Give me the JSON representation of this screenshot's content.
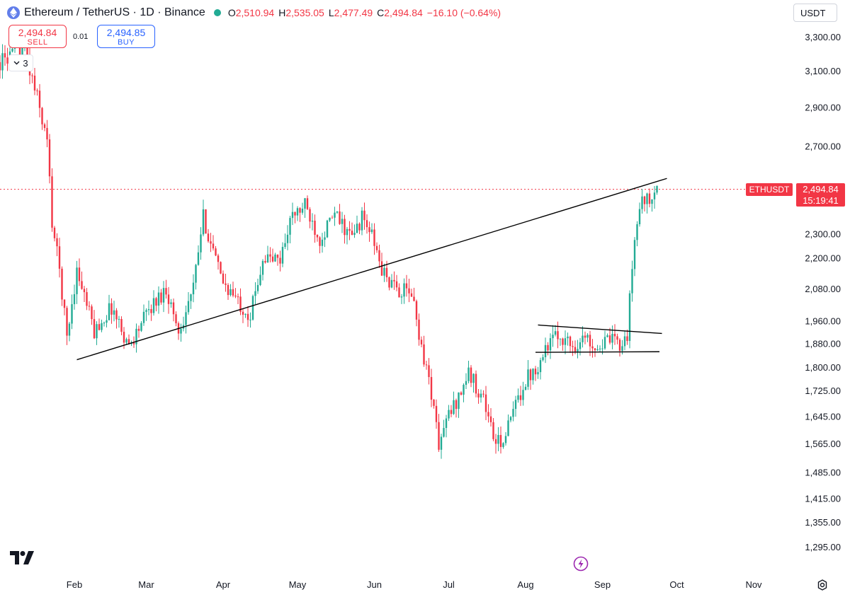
{
  "header": {
    "symbol": "Ethereum / TetherUS · 1D · Binance",
    "ohlc": [
      {
        "k": "O",
        "v": "2,510.94"
      },
      {
        "k": "H",
        "v": "2,535.05"
      },
      {
        "k": "L",
        "v": "2,477.49"
      },
      {
        "k": "C",
        "v": "2,494.84"
      },
      {
        "k": "",
        "v": "−16.10 (−0.64%)"
      }
    ]
  },
  "trade": {
    "sell_price": "2,494.84",
    "sell_label": "SELL",
    "buy_price": "2,494.85",
    "buy_label": "BUY",
    "spread": "0.01"
  },
  "indicators_count": "3",
  "currency": "USDT",
  "price_tag": {
    "symbol": "ETHUSDT",
    "price": "2,494.84",
    "countdown": "15:19:41"
  },
  "colors": {
    "up": "#22ab94",
    "down": "#f23645",
    "trendline": "#000000",
    "price_line": "#f23645"
  },
  "chart_data": {
    "type": "candlestick",
    "y_axis_labels": [
      "3,300.00",
      "3,100.00",
      "2,900.00",
      "2,700.00",
      "2,300.00",
      "2,200.00",
      "2,080.00",
      "1,960.00",
      "1,880.00",
      "1,800.00",
      "1,725.00",
      "1,645.00",
      "1,565.00",
      "1,485.00",
      "1,415.00",
      "1,355.00",
      "1,295.00"
    ],
    "y_axis_values": [
      3300,
      3100,
      2900,
      2700,
      2300,
      2200,
      2080,
      1960,
      1880,
      1800,
      1725,
      1645,
      1565,
      1485,
      1415,
      1355,
      1295
    ],
    "y_scale": "log",
    "x_axis_labels": [
      "Feb",
      "Mar",
      "Apr",
      "May",
      "Jun",
      "Jul",
      "Aug",
      "Sep",
      "Oct",
      "Nov"
    ],
    "last_price": 2494.84,
    "price_path": [
      [
        "2024-01-02",
        3150
      ],
      [
        "2024-01-08",
        3200
      ],
      [
        "2024-01-12",
        3250
      ],
      [
        "2024-01-14",
        3100
      ],
      [
        "2024-01-17",
        2950
      ],
      [
        "2024-01-21",
        2720
      ],
      [
        "2024-01-23",
        2350
      ],
      [
        "2024-01-26",
        2150
      ],
      [
        "2024-01-29",
        1900
      ],
      [
        "2024-02-02",
        2150
      ],
      [
        "2024-02-09",
        1920
      ],
      [
        "2024-02-16",
        2010
      ],
      [
        "2024-02-23",
        1870
      ],
      [
        "2024-03-02",
        2000
      ],
      [
        "2024-03-09",
        2080
      ],
      [
        "2024-03-14",
        1920
      ],
      [
        "2024-03-20",
        2080
      ],
      [
        "2024-03-24",
        2370
      ],
      [
        "2024-03-31",
        2120
      ],
      [
        "2024-04-06",
        2040
      ],
      [
        "2024-04-12",
        1980
      ],
      [
        "2024-04-17",
        2200
      ],
      [
        "2024-04-24",
        2190
      ],
      [
        "2024-04-28",
        2360
      ],
      [
        "2024-05-04",
        2420
      ],
      [
        "2024-05-10",
        2280
      ],
      [
        "2024-05-16",
        2380
      ],
      [
        "2024-05-23",
        2280
      ],
      [
        "2024-05-27",
        2370
      ],
      [
        "2024-05-31",
        2290
      ],
      [
        "2024-06-04",
        2150
      ],
      [
        "2024-06-09",
        2080
      ],
      [
        "2024-06-16",
        2060
      ],
      [
        "2024-06-20",
        1870
      ],
      [
        "2024-06-24",
        1720
      ],
      [
        "2024-06-27",
        1560
      ],
      [
        "2024-07-01",
        1650
      ],
      [
        "2024-07-04",
        1690
      ],
      [
        "2024-07-09",
        1780
      ],
      [
        "2024-07-15",
        1700
      ],
      [
        "2024-07-20",
        1560
      ],
      [
        "2024-07-24",
        1590
      ],
      [
        "2024-07-28",
        1680
      ],
      [
        "2024-08-01",
        1760
      ],
      [
        "2024-08-06",
        1810
      ],
      [
        "2024-08-10",
        1880
      ],
      [
        "2024-08-15",
        1910
      ],
      [
        "2024-08-20",
        1870
      ],
      [
        "2024-08-25",
        1900
      ],
      [
        "2024-08-30",
        1870
      ],
      [
        "2024-09-04",
        1890
      ],
      [
        "2024-09-08",
        1880
      ],
      [
        "2024-09-11",
        1910
      ],
      [
        "2024-09-14",
        2280
      ],
      [
        "2024-09-17",
        2470
      ],
      [
        "2024-09-20",
        2430
      ],
      [
        "2024-09-23",
        2494.84
      ]
    ],
    "trendlines": [
      {
        "from": [
          "2024-02-02",
          1825
        ],
        "to": [
          "2024-09-27",
          2545
        ]
      },
      {
        "from": [
          "2024-08-06",
          1945
        ],
        "to": [
          "2024-09-25",
          1915
        ]
      },
      {
        "from": [
          "2024-08-05",
          1850
        ],
        "to": [
          "2024-09-24",
          1852
        ]
      }
    ]
  }
}
